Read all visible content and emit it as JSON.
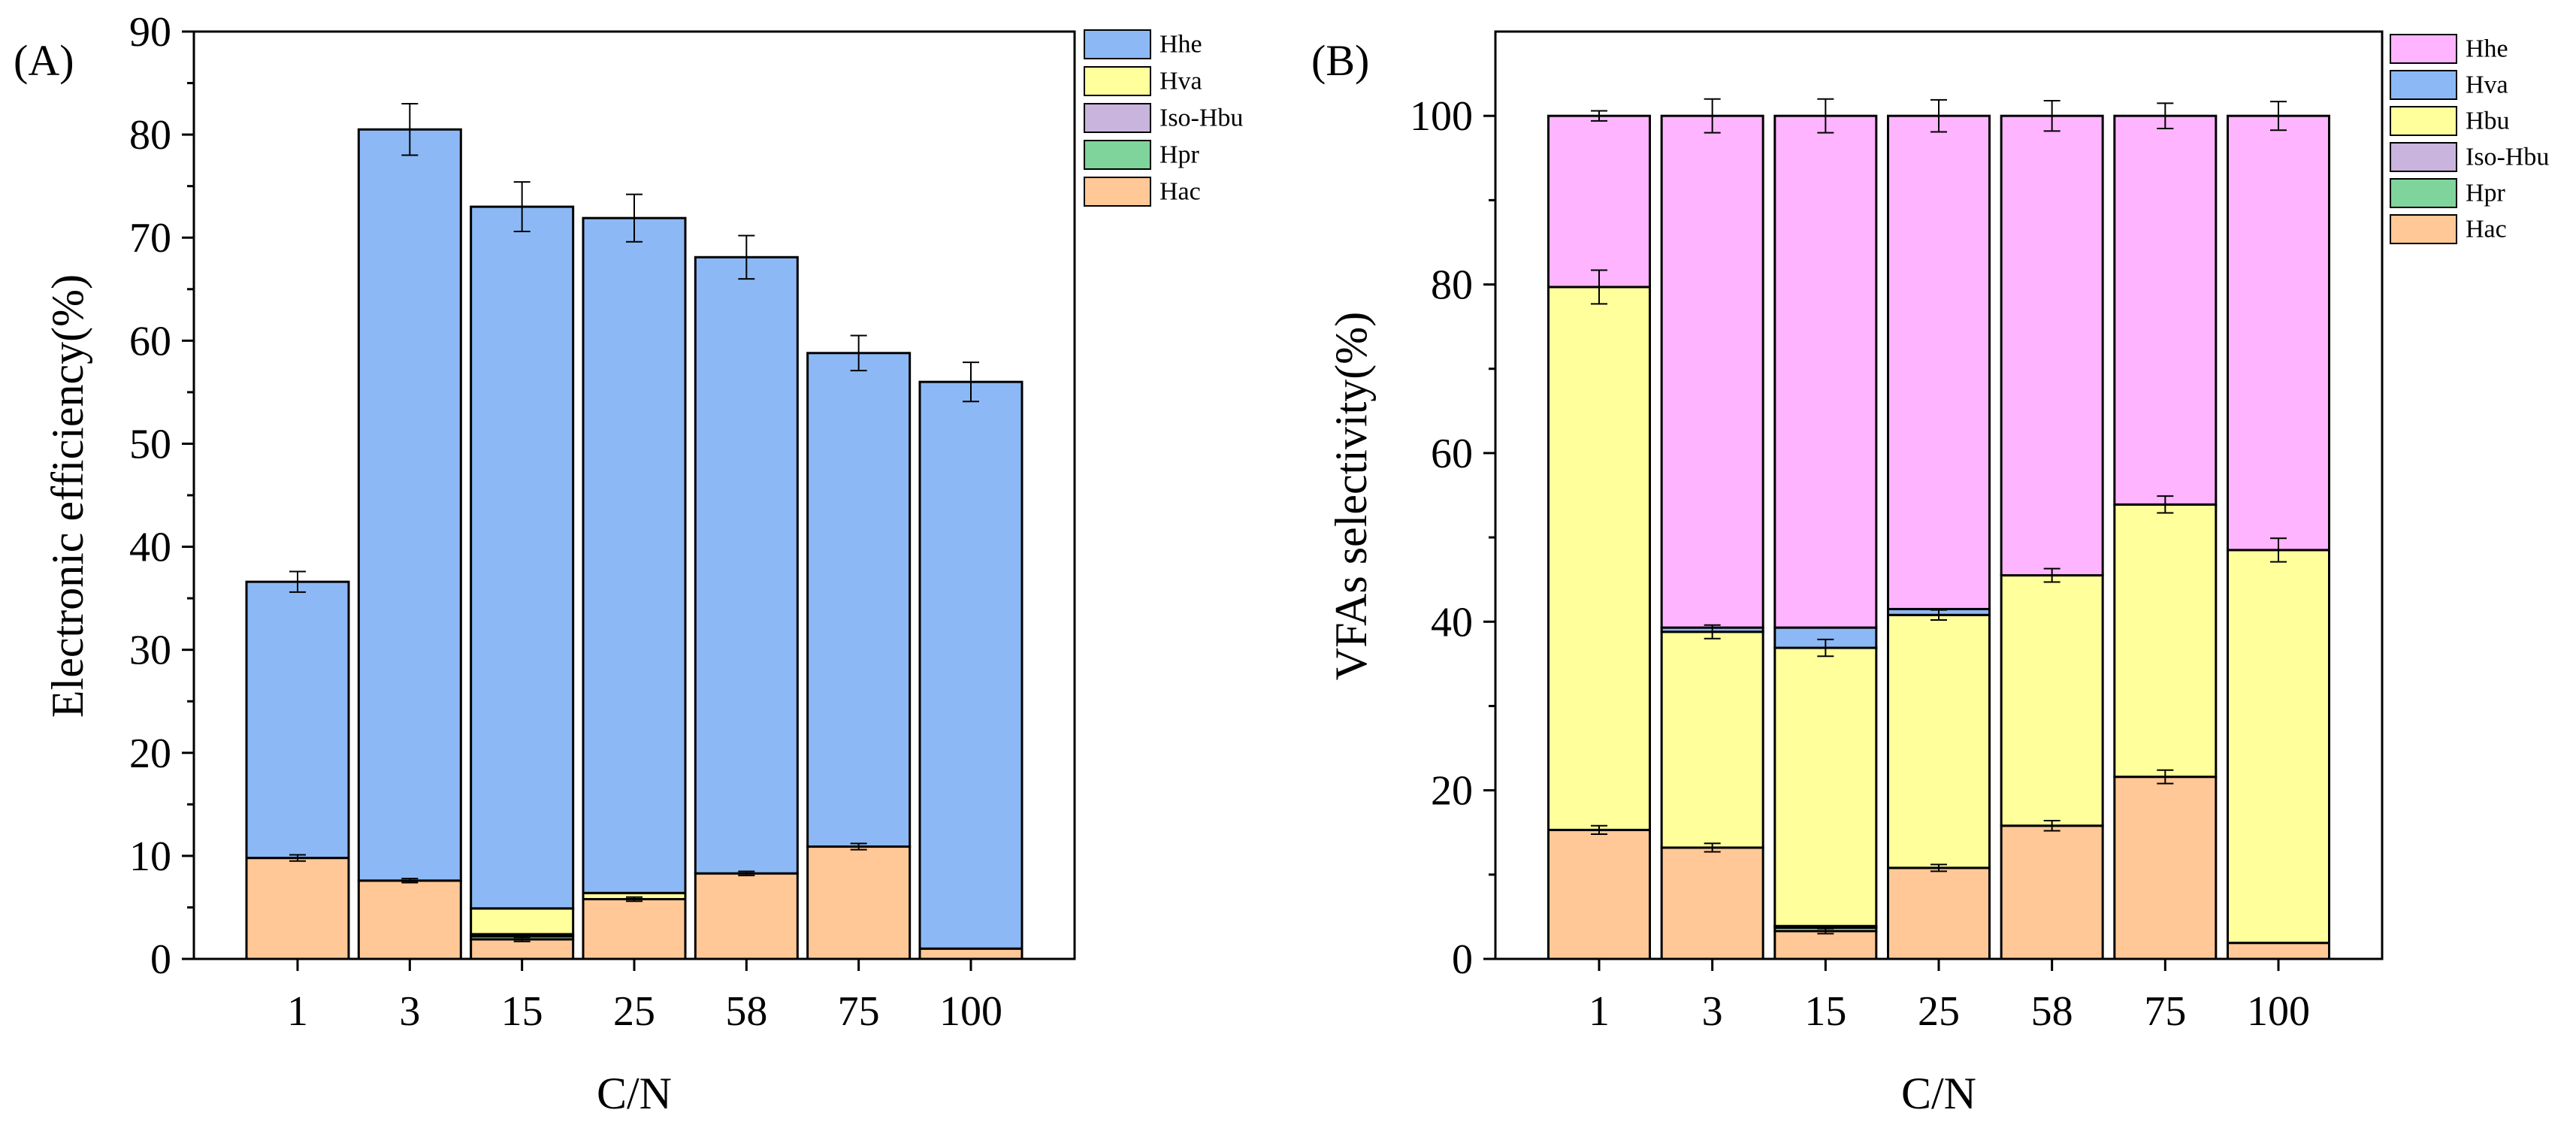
{
  "chart_data": [
    {
      "panel_label": "(A)",
      "type": "stacked-bar",
      "categories": [
        "1",
        "3",
        "15",
        "25",
        "58",
        "75",
        "100"
      ],
      "xlabel": "C/N",
      "ylabel": "Electronic efficiency(%)",
      "ylim": [
        0,
        90
      ],
      "yticks": [
        "0",
        "10",
        "20",
        "30",
        "40",
        "50",
        "60",
        "70",
        "80",
        "90"
      ],
      "legend": [
        "Hhe",
        "Hva",
        "Iso-Hbu",
        "Hpr",
        "Hac"
      ],
      "legend_position": "top-right",
      "series": [
        {
          "name": "Hac",
          "color": "#ffc896",
          "values": [
            9.8,
            7.6,
            1.9,
            5.8,
            8.3,
            10.9,
            1.0
          ],
          "errors": [
            0.3,
            0.2,
            0.2,
            0.2,
            0.2,
            0.3,
            0
          ]
        },
        {
          "name": "Hpr",
          "color": "#7fd49b",
          "values": [
            0,
            0,
            0.3,
            0,
            0,
            0,
            0
          ],
          "errors": [
            0,
            0,
            0,
            0,
            0,
            0,
            0
          ]
        },
        {
          "name": "Iso-Hbu",
          "color": "#c8b4dc",
          "values": [
            0,
            0,
            0.2,
            0,
            0,
            0,
            0
          ],
          "errors": [
            0,
            0,
            0,
            0,
            0,
            0,
            0
          ]
        },
        {
          "name": "Hva",
          "color": "#ffff9c",
          "values": [
            0,
            0,
            2.5,
            0.6,
            0,
            0,
            0
          ],
          "errors": [
            0,
            0,
            0,
            0,
            0,
            0,
            0
          ]
        },
        {
          "name": "Hhe",
          "color": "#8cb9f5",
          "values": [
            26.8,
            72.9,
            68.1,
            65.5,
            59.8,
            47.9,
            55.0
          ],
          "errors": [
            1.0,
            2.5,
            2.4,
            2.3,
            2.1,
            1.7,
            1.9
          ]
        }
      ]
    },
    {
      "panel_label": "(B)",
      "type": "stacked-bar",
      "categories": [
        "1",
        "3",
        "15",
        "25",
        "58",
        "75",
        "100"
      ],
      "xlabel": "C/N",
      "ylabel": "VFAs selectivity(%)",
      "ylim": [
        0,
        110
      ],
      "yticks": [
        "0",
        "20",
        "40",
        "60",
        "80",
        "100"
      ],
      "legend": [
        "Hhe",
        "Hva",
        "Hbu",
        "Iso-Hbu",
        "Hpr",
        "Hac"
      ],
      "legend_position": "top-right",
      "series": [
        {
          "name": "Hac",
          "color": "#ffc896",
          "values": [
            15.3,
            13.2,
            3.3,
            10.8,
            15.8,
            21.6,
            1.9
          ],
          "errors": [
            0.5,
            0.5,
            0.3,
            0.4,
            0.6,
            0.8,
            0
          ]
        },
        {
          "name": "Hpr",
          "color": "#7fd49b",
          "values": [
            0,
            0,
            0.4,
            0,
            0,
            0,
            0
          ],
          "errors": [
            0,
            0,
            0,
            0,
            0,
            0,
            0
          ]
        },
        {
          "name": "Iso-Hbu",
          "color": "#c8b4dc",
          "values": [
            0,
            0,
            0.2,
            0,
            0,
            0,
            0
          ],
          "errors": [
            0,
            0,
            0,
            0,
            0,
            0,
            0
          ]
        },
        {
          "name": "Hbu",
          "color": "#ffff9c",
          "values": [
            64.4,
            25.6,
            33.0,
            30.0,
            29.7,
            32.3,
            46.6
          ],
          "errors": [
            2.0,
            0.8,
            1.0,
            0.6,
            0.8,
            1.0,
            1.4
          ]
        },
        {
          "name": "Hva",
          "color": "#8cb9f5",
          "values": [
            0,
            0.5,
            2.4,
            0.7,
            0,
            0,
            0
          ],
          "errors": [
            0,
            0,
            0,
            0,
            0,
            0,
            0
          ]
        },
        {
          "name": "Hhe",
          "color": "#ffb4ff",
          "values": [
            20.3,
            60.7,
            60.7,
            58.5,
            54.5,
            46.1,
            51.5
          ],
          "errors": [
            0.6,
            2.0,
            2.0,
            1.9,
            1.8,
            1.5,
            1.7
          ]
        }
      ]
    }
  ]
}
